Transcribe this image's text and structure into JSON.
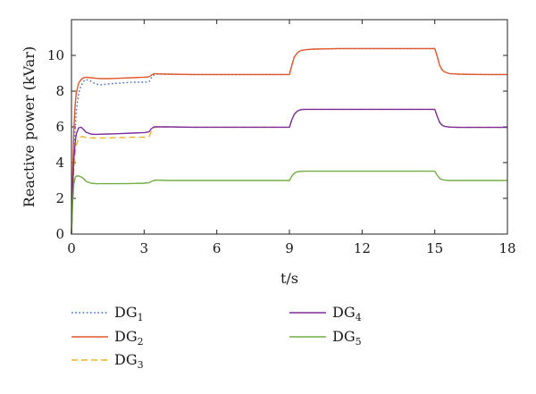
{
  "chart_data": {
    "type": "line",
    "xlabel": "t/s",
    "ylabel": "Reactive power (kVar)",
    "xlim": [
      0,
      18
    ],
    "ylim": [
      0,
      12
    ],
    "xticks": [
      "0",
      "3",
      "6",
      "9",
      "12",
      "15",
      "18"
    ],
    "yticks": [
      "0",
      "2",
      "4",
      "6",
      "8",
      "10"
    ],
    "grid": false,
    "legend_position": "bottom",
    "series": [
      {
        "name": "DG1",
        "base": "DG",
        "sub": "1",
        "color": "#3a6fd8",
        "style": "dotted",
        "x": [
          0,
          0.05,
          0.1,
          0.15,
          0.2,
          0.3,
          0.4,
          0.5,
          0.6,
          0.8,
          1.0,
          1.2,
          1.5,
          2.0,
          2.5,
          3.0,
          3.2,
          3.3,
          3.4,
          3.5,
          4.0,
          5.0,
          6.0,
          7.0,
          8.0,
          9.0,
          9.1,
          9.2,
          9.3,
          9.4,
          9.5,
          9.7,
          10.0,
          11.0,
          12.0,
          13.0,
          14.0,
          15.0,
          15.1,
          15.2,
          15.3,
          15.4,
          15.6,
          16.0,
          17.0,
          18.0
        ],
        "y": [
          0,
          2.6,
          4.6,
          5.9,
          6.9,
          7.9,
          8.3,
          8.55,
          8.65,
          8.55,
          8.4,
          8.35,
          8.4,
          8.45,
          8.5,
          8.5,
          8.52,
          8.75,
          8.9,
          8.95,
          8.95,
          8.93,
          8.93,
          8.93,
          8.93,
          8.93,
          9.45,
          9.9,
          10.1,
          10.22,
          10.28,
          10.32,
          10.35,
          10.38,
          10.38,
          10.38,
          10.38,
          10.38,
          9.95,
          9.45,
          9.2,
          9.08,
          8.98,
          8.95,
          8.93,
          8.93
        ]
      },
      {
        "name": "DG2",
        "base": "DG",
        "sub": "2",
        "color": "#e2572a",
        "style": "solid",
        "x": [
          0,
          0.05,
          0.1,
          0.15,
          0.2,
          0.3,
          0.4,
          0.5,
          0.6,
          0.8,
          1.0,
          1.2,
          1.5,
          2.0,
          2.5,
          3.0,
          3.2,
          3.3,
          3.4,
          3.5,
          4.0,
          5.0,
          6.0,
          7.0,
          8.0,
          9.0,
          9.1,
          9.2,
          9.3,
          9.4,
          9.5,
          9.7,
          10.0,
          11.0,
          12.0,
          13.0,
          14.0,
          15.0,
          15.1,
          15.2,
          15.3,
          15.4,
          15.6,
          16.0,
          17.0,
          18.0
        ],
        "y": [
          0,
          3.5,
          5.9,
          7.2,
          7.9,
          8.45,
          8.65,
          8.75,
          8.78,
          8.75,
          8.72,
          8.7,
          8.7,
          8.72,
          8.75,
          8.78,
          8.8,
          8.9,
          8.97,
          8.97,
          8.95,
          8.93,
          8.93,
          8.93,
          8.93,
          8.93,
          9.45,
          9.9,
          10.1,
          10.22,
          10.28,
          10.32,
          10.35,
          10.38,
          10.38,
          10.38,
          10.38,
          10.38,
          9.95,
          9.45,
          9.2,
          9.08,
          8.98,
          8.95,
          8.93,
          8.93
        ]
      },
      {
        "name": "DG3",
        "base": "DG",
        "sub": "3",
        "color": "#f0b323",
        "style": "dashed",
        "x": [
          0,
          0.05,
          0.1,
          0.15,
          0.2,
          0.3,
          0.4,
          0.5,
          0.6,
          0.8,
          1.0,
          1.5,
          2.0,
          2.5,
          3.0,
          3.2,
          3.3,
          3.4,
          3.5,
          4.0,
          5.0,
          6.0,
          7.0,
          8.0,
          9.0,
          9.1,
          9.2,
          9.3,
          9.4,
          9.5,
          9.7,
          10.0,
          11.0,
          12.0,
          13.0,
          14.0,
          15.0,
          15.1,
          15.2,
          15.3,
          15.4,
          15.6,
          16.0,
          17.0,
          18.0
        ],
        "y": [
          0,
          2.2,
          3.7,
          4.5,
          5.0,
          5.35,
          5.45,
          5.45,
          5.4,
          5.38,
          5.38,
          5.38,
          5.4,
          5.42,
          5.42,
          5.45,
          5.75,
          5.95,
          6.0,
          6.0,
          5.98,
          5.98,
          5.98,
          5.98,
          5.98,
          6.4,
          6.7,
          6.85,
          6.93,
          6.97,
          6.98,
          6.98,
          6.98,
          6.98,
          6.98,
          6.98,
          6.98,
          6.6,
          6.25,
          6.1,
          6.03,
          5.99,
          5.97,
          5.97,
          5.97
        ]
      },
      {
        "name": "DG4",
        "base": "DG",
        "sub": "4",
        "color": "#7b2d9e",
        "style": "solid",
        "x": [
          0,
          0.05,
          0.1,
          0.15,
          0.2,
          0.3,
          0.4,
          0.5,
          0.6,
          0.8,
          1.0,
          1.5,
          2.0,
          2.5,
          3.0,
          3.2,
          3.3,
          3.4,
          3.5,
          4.0,
          5.0,
          6.0,
          7.0,
          8.0,
          9.0,
          9.1,
          9.2,
          9.3,
          9.4,
          9.5,
          9.7,
          10.0,
          11.0,
          12.0,
          13.0,
          14.0,
          15.0,
          15.1,
          15.2,
          15.3,
          15.4,
          15.6,
          16.0,
          17.0,
          18.0
        ],
        "y": [
          0,
          2.5,
          4.2,
          5.1,
          5.6,
          5.95,
          5.98,
          5.85,
          5.7,
          5.6,
          5.58,
          5.6,
          5.62,
          5.65,
          5.68,
          5.72,
          5.9,
          6.0,
          6.0,
          6.0,
          5.98,
          5.98,
          5.98,
          5.98,
          5.98,
          6.4,
          6.7,
          6.85,
          6.93,
          6.97,
          6.98,
          6.98,
          6.98,
          6.98,
          6.98,
          6.98,
          6.98,
          6.6,
          6.25,
          6.1,
          6.03,
          5.99,
          5.97,
          5.97,
          5.97
        ]
      },
      {
        "name": "DG5",
        "base": "DG",
        "sub": "5",
        "color": "#72ad45",
        "style": "solid",
        "x": [
          0,
          0.05,
          0.1,
          0.15,
          0.2,
          0.3,
          0.4,
          0.5,
          0.6,
          0.8,
          1.0,
          1.5,
          2.0,
          2.5,
          3.0,
          3.2,
          3.3,
          3.4,
          3.5,
          4.0,
          5.0,
          6.0,
          7.0,
          8.0,
          9.0,
          9.1,
          9.2,
          9.3,
          9.4,
          9.5,
          9.7,
          10.0,
          11.0,
          12.0,
          13.0,
          14.0,
          15.0,
          15.1,
          15.2,
          15.3,
          15.4,
          15.6,
          16.0,
          17.0,
          18.0
        ],
        "y": [
          0,
          1.8,
          2.8,
          3.15,
          3.25,
          3.25,
          3.2,
          3.1,
          2.95,
          2.85,
          2.82,
          2.82,
          2.82,
          2.83,
          2.85,
          2.87,
          2.95,
          3.0,
          3.02,
          3.0,
          3.0,
          3.0,
          3.0,
          3.0,
          3.0,
          3.25,
          3.4,
          3.48,
          3.5,
          3.51,
          3.52,
          3.52,
          3.52,
          3.52,
          3.52,
          3.52,
          3.52,
          3.3,
          3.12,
          3.05,
          3.02,
          3.0,
          3.0,
          3.0,
          3.0
        ]
      }
    ]
  }
}
